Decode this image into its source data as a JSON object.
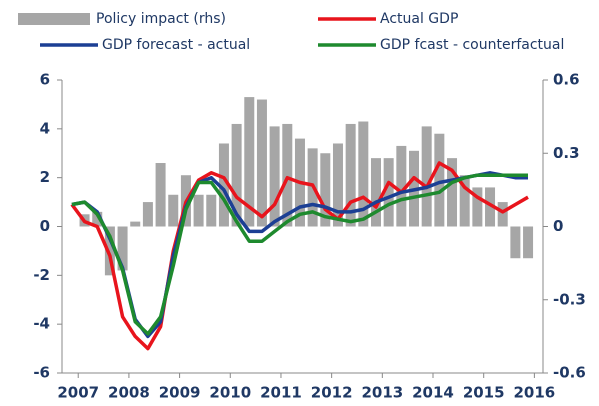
{
  "chart_data": {
    "type": "combo",
    "x": [
      2006.875,
      2007.125,
      2007.375,
      2007.625,
      2007.875,
      2008.125,
      2008.375,
      2008.625,
      2008.875,
      2009.125,
      2009.375,
      2009.625,
      2009.875,
      2010.125,
      2010.375,
      2010.625,
      2010.875,
      2011.125,
      2011.375,
      2011.625,
      2011.875,
      2012.125,
      2012.375,
      2012.625,
      2012.875,
      2013.125,
      2013.375,
      2013.625,
      2013.875,
      2014.125,
      2014.375,
      2014.625,
      2014.875,
      2015.125,
      2015.375,
      2015.625,
      2015.875
    ],
    "series": [
      {
        "name": "Policy impact (rhs)",
        "type": "bar",
        "axis": "y2",
        "color": "#a6a6a6",
        "values": [
          null,
          0.05,
          0.06,
          -0.2,
          -0.18,
          0.02,
          0.1,
          0.26,
          0.13,
          0.21,
          0.13,
          0.13,
          0.34,
          0.42,
          0.53,
          0.52,
          0.41,
          0.42,
          0.36,
          0.32,
          0.3,
          0.34,
          0.42,
          0.43,
          0.28,
          0.28,
          0.33,
          0.31,
          0.41,
          0.38,
          0.28,
          0.21,
          0.16,
          0.16,
          0.1,
          -0.13,
          -0.13
        ]
      },
      {
        "name": "Actual GDP",
        "type": "line",
        "color": "#e8141c",
        "values": [
          0.9,
          0.2,
          0.0,
          -1.2,
          -3.7,
          -4.5,
          -5.0,
          -4.1,
          -1.0,
          1.0,
          1.9,
          2.2,
          2.0,
          1.2,
          0.8,
          0.4,
          0.9,
          2.0,
          1.8,
          1.7,
          0.7,
          0.3,
          1.0,
          1.2,
          0.8,
          1.8,
          1.4,
          2.0,
          1.6,
          2.6,
          2.3,
          1.6,
          1.2,
          0.9,
          0.6,
          0.9,
          1.2
        ]
      },
      {
        "name": "GDP forecast - actual",
        "type": "line",
        "color": "#1c3f94",
        "values": [
          0.9,
          1.0,
          0.6,
          -0.5,
          -1.7,
          -3.8,
          -4.5,
          -3.9,
          -1.2,
          0.8,
          1.8,
          2.0,
          1.5,
          0.5,
          -0.2,
          -0.2,
          0.2,
          0.5,
          0.8,
          0.9,
          0.8,
          0.6,
          0.6,
          0.7,
          1.0,
          1.2,
          1.4,
          1.5,
          1.6,
          1.8,
          1.9,
          2.0,
          2.1,
          2.2,
          2.1,
          2.0,
          2.0
        ]
      },
      {
        "name": "GDP fcast - counterfactual",
        "type": "line",
        "color": "#1e8a2e",
        "values": [
          0.9,
          1.0,
          0.5,
          -0.4,
          -1.8,
          -3.9,
          -4.4,
          -3.7,
          -1.6,
          0.7,
          1.8,
          1.8,
          1.1,
          0.2,
          -0.6,
          -0.6,
          -0.2,
          0.2,
          0.5,
          0.6,
          0.4,
          0.3,
          0.2,
          0.3,
          0.6,
          0.9,
          1.1,
          1.2,
          1.3,
          1.4,
          1.8,
          2.0,
          2.1,
          2.1,
          2.1,
          2.1,
          2.1
        ]
      }
    ],
    "xlim": [
      2006.68,
      2016.17
    ],
    "xticks": [
      2007,
      2008,
      2009,
      2010,
      2011,
      2012,
      2013,
      2014,
      2015,
      2016
    ],
    "ylim": [
      -6,
      6
    ],
    "yticks": [
      6,
      4,
      2,
      0,
      -2,
      -4,
      -6
    ],
    "y2lim": [
      -0.6,
      0.6
    ],
    "y2ticks": [
      0.6,
      0.3,
      0,
      -0.3,
      -0.6
    ]
  }
}
